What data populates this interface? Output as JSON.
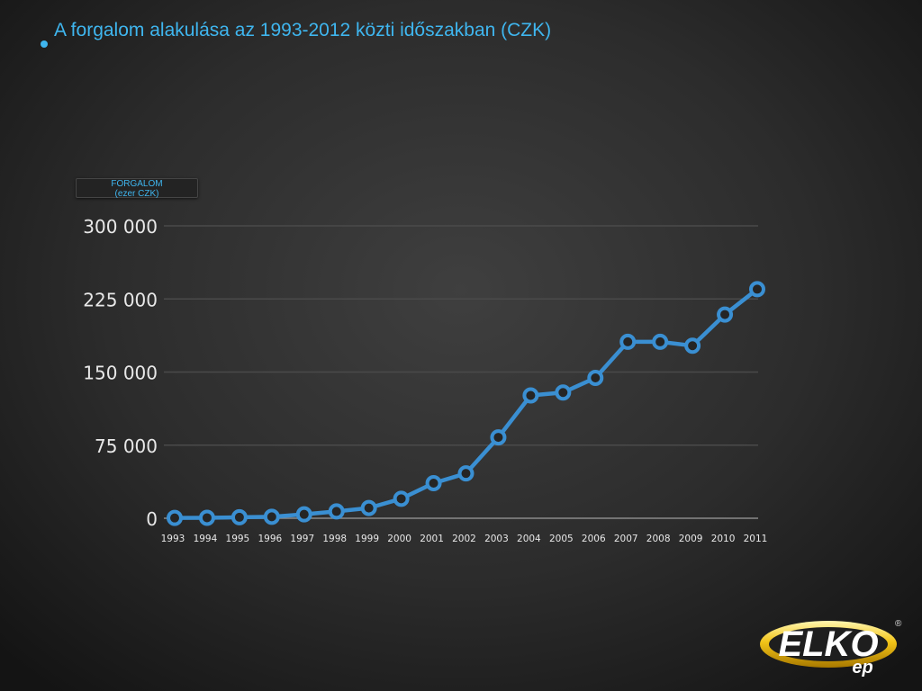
{
  "slide": {
    "title": "A forgalom alakulása az 1993-2012 közti időszakban (CZK)"
  },
  "legend": {
    "line1": "FORGALOM",
    "line2": "(ezer CZK)"
  },
  "colors": {
    "accent": "#3fb6ef",
    "series": "#3a8fd2",
    "axis_text": "#e8e8e8",
    "grid": "#4a4a4a"
  },
  "chart_data": {
    "type": "line",
    "categories": [
      "1993",
      "1994",
      "1995",
      "1996",
      "1997",
      "1998",
      "1999",
      "2000",
      "2001",
      "2002",
      "2003",
      "2004",
      "2005",
      "2006",
      "2007",
      "2008",
      "2009",
      "2010",
      "2011"
    ],
    "series": [
      {
        "values": [
          300,
          500,
          1000,
          1500,
          4000,
          7000,
          10500,
          20000,
          36000,
          46000,
          83000,
          126000,
          129000,
          144000,
          181000,
          181000,
          177000,
          209000,
          235000
        ]
      }
    ],
    "y_ticks": [
      "0",
      "75 000",
      "150 000",
      "225 000",
      "300 000"
    ],
    "y_tick_values": [
      0,
      75000,
      150000,
      225000,
      300000
    ],
    "ylim": [
      0,
      300000
    ],
    "grid": true,
    "legend_position": "top-left"
  },
  "logo": {
    "text": "ELKO",
    "sub": "ep",
    "mark": "®"
  }
}
